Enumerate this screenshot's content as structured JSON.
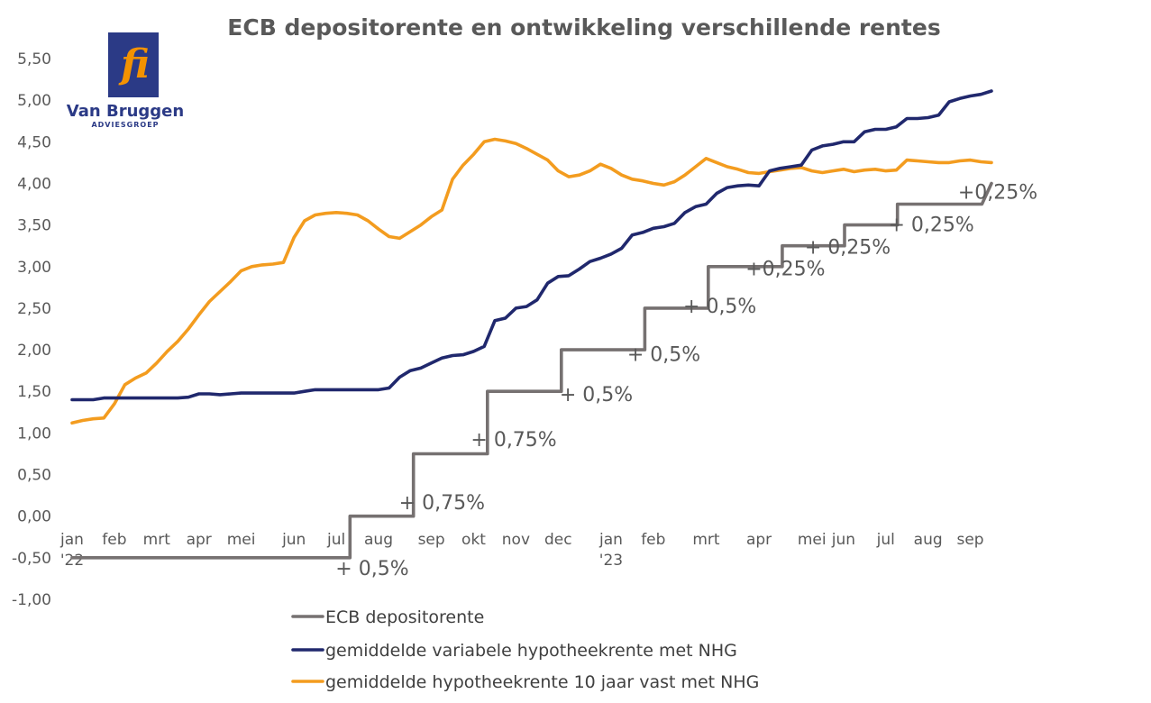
{
  "logo": {
    "brand": "Van Bruggen",
    "sub": "ADVIESGROEP",
    "mark": "fi",
    "colors": {
      "square": "#2b3a86",
      "mark": "#f39200"
    }
  },
  "chart_data": {
    "type": "line",
    "title": "ECB depositorente en ontwikkeling verschillende rentes",
    "xlabel": "",
    "ylabel": "",
    "ylim": [
      -1.0,
      5.5
    ],
    "yticks": [
      5.5,
      5.0,
      4.5,
      4.0,
      3.5,
      3.0,
      2.5,
      2.0,
      1.5,
      1.0,
      0.5,
      0.0,
      -0.5,
      -1.0
    ],
    "yticklabels": [
      "5,50",
      "5,00",
      "4,50",
      "4,00",
      "3,50",
      "3,00",
      "2,50",
      "2,00",
      "1,50",
      "1,00",
      "0,50",
      "0,00",
      "-0,50",
      "-1,00"
    ],
    "xrange": [
      0,
      87
    ],
    "xticks": [
      {
        "x": 0,
        "label": "jan",
        "label2": "'22"
      },
      {
        "x": 4,
        "label": "feb"
      },
      {
        "x": 8,
        "label": "mrt"
      },
      {
        "x": 12,
        "label": "apr"
      },
      {
        "x": 16,
        "label": "mei"
      },
      {
        "x": 21,
        "label": "jun"
      },
      {
        "x": 25,
        "label": "jul"
      },
      {
        "x": 29,
        "label": "aug"
      },
      {
        "x": 34,
        "label": "sep"
      },
      {
        "x": 38,
        "label": "okt"
      },
      {
        "x": 42,
        "label": "nov"
      },
      {
        "x": 46,
        "label": "dec"
      },
      {
        "x": 51,
        "label": "jan",
        "label2": "'23"
      },
      {
        "x": 55,
        "label": "feb"
      },
      {
        "x": 60,
        "label": "mrt"
      },
      {
        "x": 65,
        "label": "apr"
      },
      {
        "x": 70,
        "label": "mei"
      },
      {
        "x": 73,
        "label": "jun"
      },
      {
        "x": 77,
        "label": "jul"
      },
      {
        "x": 81,
        "label": "aug"
      },
      {
        "x": 85,
        "label": "sep"
      }
    ],
    "series": [
      {
        "name": "ECB depositorente",
        "color": "#767171",
        "step": true,
        "x": [
          0,
          26.3,
          26.3,
          32.3,
          32.3,
          39.3,
          39.3,
          46.3,
          46.3,
          52.2,
          52.2,
          54.2,
          54.2,
          58.2,
          58.2,
          60.2,
          60.2,
          66.2,
          66.2,
          67.2,
          67.2,
          73.1,
          73.1,
          78.1,
          78.1,
          80.1,
          80.1,
          86.1,
          86.1,
          87
        ],
        "values": [
          -0.5,
          -0.5,
          0,
          0,
          0.75,
          0.75,
          1.5,
          1.5,
          2.0,
          2.0,
          2.0,
          2.0,
          2.5,
          2.5,
          2.5,
          2.5,
          3.0,
          3.0,
          3.0,
          3.0,
          3.25,
          3.25,
          3.5,
          3.5,
          3.75,
          3.75,
          3.75,
          3.75,
          3.75,
          4.0
        ]
      },
      {
        "name": "gemiddelde variabele hypotheekrente met NHG",
        "color": "#20286d",
        "x": [
          0,
          1,
          2,
          3,
          4,
          5,
          6,
          7,
          8,
          9,
          10,
          11,
          12,
          13,
          14,
          15,
          16,
          17,
          18,
          19,
          20,
          21,
          22,
          23,
          24,
          25,
          26,
          27,
          28,
          29,
          30,
          31,
          32,
          33,
          34,
          35,
          36,
          37,
          38,
          39,
          40,
          41,
          42,
          43,
          44,
          45,
          46,
          47,
          48,
          49,
          50,
          51,
          52,
          53,
          54,
          55,
          56,
          57,
          58,
          59,
          60,
          61,
          62,
          63,
          64,
          65,
          66,
          67,
          68,
          69,
          70,
          71,
          72,
          73,
          74,
          75,
          76,
          77,
          78,
          79,
          80,
          81,
          82,
          83,
          84,
          85,
          86,
          87
        ],
        "values": [
          1.4,
          1.4,
          1.4,
          1.42,
          1.42,
          1.42,
          1.42,
          1.42,
          1.42,
          1.42,
          1.42,
          1.43,
          1.47,
          1.47,
          1.46,
          1.47,
          1.48,
          1.48,
          1.48,
          1.48,
          1.48,
          1.48,
          1.5,
          1.52,
          1.52,
          1.52,
          1.52,
          1.52,
          1.52,
          1.52,
          1.54,
          1.67,
          1.75,
          1.78,
          1.84,
          1.9,
          1.93,
          1.94,
          1.98,
          2.04,
          2.35,
          2.38,
          2.5,
          2.52,
          2.6,
          2.8,
          2.88,
          2.89,
          2.97,
          3.06,
          3.1,
          3.15,
          3.22,
          3.38,
          3.41,
          3.46,
          3.48,
          3.52,
          3.65,
          3.72,
          3.75,
          3.88,
          3.95,
          3.97,
          3.98,
          3.97,
          4.15,
          4.18,
          4.2,
          4.22,
          4.4,
          4.45,
          4.47,
          4.5,
          4.5,
          4.62,
          4.65,
          4.65,
          4.68,
          4.78,
          4.78,
          4.79,
          4.82,
          4.98,
          5.02,
          5.05,
          5.07,
          5.11
        ]
      },
      {
        "name": "gemiddelde hypotheekrente 10 jaar vast met NHG",
        "color": "#f39c1f",
        "x": [
          0,
          1,
          2,
          3,
          4,
          5,
          6,
          7,
          8,
          9,
          10,
          11,
          12,
          13,
          14,
          15,
          16,
          17,
          18,
          19,
          20,
          21,
          22,
          23,
          24,
          25,
          26,
          27,
          28,
          29,
          30,
          31,
          32,
          33,
          34,
          35,
          36,
          37,
          38,
          39,
          40,
          41,
          42,
          43,
          44,
          45,
          46,
          47,
          48,
          49,
          50,
          51,
          52,
          53,
          54,
          55,
          56,
          57,
          58,
          59,
          60,
          61,
          62,
          63,
          64,
          65,
          66,
          67,
          68,
          69,
          70,
          71,
          72,
          73,
          74,
          75,
          76,
          77,
          78,
          79,
          80,
          81,
          82,
          83,
          84,
          85,
          86,
          87
        ],
        "values": [
          1.12,
          1.15,
          1.17,
          1.18,
          1.35,
          1.58,
          1.66,
          1.72,
          1.84,
          1.98,
          2.1,
          2.25,
          2.42,
          2.58,
          2.7,
          2.82,
          2.95,
          3.0,
          3.02,
          3.03,
          3.05,
          3.35,
          3.55,
          3.62,
          3.64,
          3.65,
          3.64,
          3.62,
          3.55,
          3.45,
          3.36,
          3.34,
          3.42,
          3.5,
          3.6,
          3.68,
          4.05,
          4.22,
          4.35,
          4.5,
          4.53,
          4.51,
          4.48,
          4.42,
          4.35,
          4.28,
          4.15,
          4.08,
          4.1,
          4.15,
          4.23,
          4.18,
          4.1,
          4.05,
          4.03,
          4.0,
          3.98,
          4.02,
          4.1,
          4.2,
          4.3,
          4.25,
          4.2,
          4.17,
          4.13,
          4.12,
          4.14,
          4.16,
          4.18,
          4.19,
          4.15,
          4.13,
          4.15,
          4.17,
          4.14,
          4.16,
          4.17,
          4.15,
          4.16,
          4.28,
          4.27,
          4.26,
          4.25,
          4.25,
          4.27,
          4.28,
          4.26,
          4.25
        ]
      }
    ],
    "annotations": [
      {
        "text": "+ 0,5%",
        "x": 28.4,
        "y": -0.62
      },
      {
        "text": "+ 0,75%",
        "x": 35,
        "y": 0.17
      },
      {
        "text": "+ 0,75%",
        "x": 41.8,
        "y": 0.93
      },
      {
        "text": "+ 0,5%",
        "x": 49.6,
        "y": 1.47
      },
      {
        "text": "+ 0,5%",
        "x": 56,
        "y": 1.95
      },
      {
        "text": "+ 0,5%",
        "x": 61.3,
        "y": 2.53
      },
      {
        "text": "+0,25%",
        "x": 67.5,
        "y": 2.98
      },
      {
        "text": "+ 0,25%",
        "x": 73.4,
        "y": 3.24
      },
      {
        "text": "+ 0,25%",
        "x": 81.3,
        "y": 3.51
      },
      {
        "text": "+0,25%",
        "x": 87.6,
        "y": 3.9
      }
    ],
    "legend_position": "bottom"
  }
}
